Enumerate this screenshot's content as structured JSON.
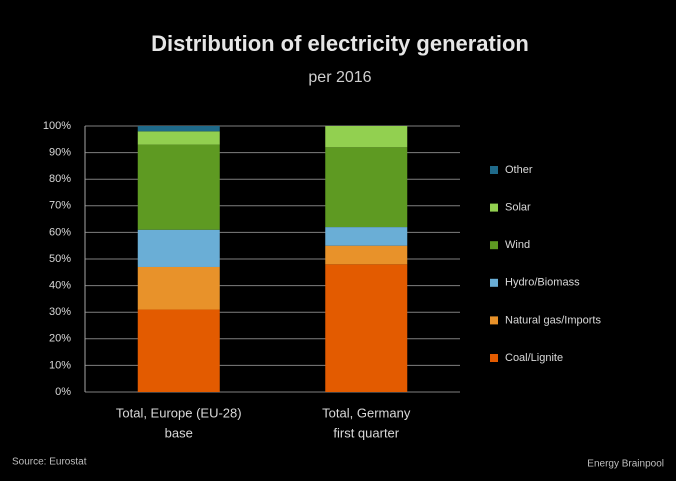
{
  "chart_data": {
    "type": "stacked_bar",
    "title": "Distribution of electricity generation",
    "subtitle": "per 2016",
    "categories": [
      "Total, Europe (EU-28)",
      "Total, Germany"
    ],
    "category_sublabels": [
      "base",
      "first quarter"
    ],
    "series": [
      {
        "name": "Coal/Lignite",
        "color": "#e35b00",
        "values": [
          31,
          48
        ]
      },
      {
        "name": "Natural gas/Imports",
        "color": "#e8922a",
        "values": [
          16,
          7
        ]
      },
      {
        "name": "Hydro/Biomass",
        "color": "#6aaed6",
        "values": [
          14,
          7
        ]
      },
      {
        "name": "Wind",
        "color": "#5e9a22",
        "values": [
          32,
          30
        ]
      },
      {
        "name": "Solar",
        "color": "#92d050",
        "values": [
          5,
          8
        ]
      },
      {
        "name": "Other",
        "color": "#1f6a8a",
        "values": [
          2,
          0
        ]
      }
    ],
    "ylim": [
      0,
      100
    ],
    "yticks": [
      {
        "value": 0,
        "label": "0%"
      },
      {
        "value": 10,
        "label": "10%"
      },
      {
        "value": 20,
        "label": "20%"
      },
      {
        "value": 30,
        "label": "30%"
      },
      {
        "value": 40,
        "label": "40%"
      },
      {
        "value": 50,
        "label": "50%"
      },
      {
        "value": 60,
        "label": "60%"
      },
      {
        "value": 70,
        "label": "70%"
      },
      {
        "value": 80,
        "label": "80%"
      },
      {
        "value": 90,
        "label": "90%"
      },
      {
        "value": 100,
        "label": "100%"
      }
    ],
    "grid": true,
    "source": "Source: Eurostat",
    "credit": "Energy Brainpool"
  }
}
